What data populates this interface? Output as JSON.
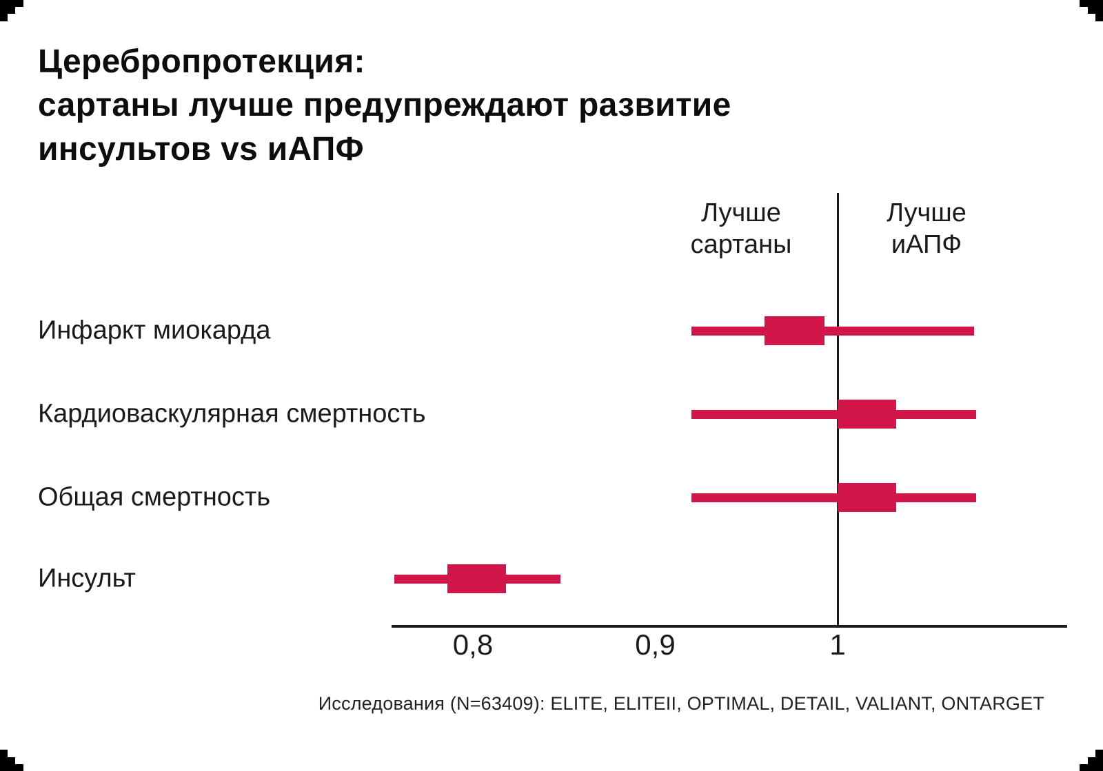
{
  "page": {
    "background": "#ffffff",
    "corner_color": "#000000",
    "text_color": "#111111"
  },
  "title": "Церебропротекция:\nсартаны лучше предупреждают развитие\nинсультов vs иАПФ",
  "footer": "Исследования (N=63409): ELITE, ELITEII, OPTIMAL, DETAIL, VALIANT, ONTARGET",
  "chart_data": {
    "type": "forest",
    "title": "Церебропротекция: сартаны лучше предупреждают развитие инсультов vs иАПФ",
    "direction_labels": {
      "left": "Лучше\nсартаны",
      "right": "Лучше\nиАПФ"
    },
    "reference_value": 1,
    "x_range": [
      0.755,
      1.126
    ],
    "x_ticks": [
      {
        "value": 0.8,
        "label": "0,8"
      },
      {
        "value": 0.9,
        "label": "0,9"
      },
      {
        "value": 1,
        "label": "1"
      }
    ],
    "grid": false,
    "marker_color": "#d2164a",
    "line_color": "#1a1a1a",
    "rows": [
      {
        "label": "Инфаркт миокарда",
        "point": 0.98,
        "ci": [
          0.92,
          1.075
        ],
        "box": [
          0.96,
          0.993
        ]
      },
      {
        "label": "Кардиоваскулярная смертность",
        "point": 1.02,
        "ci": [
          0.92,
          1.076
        ],
        "box": [
          1.0,
          1.032
        ]
      },
      {
        "label": "Общая смертность",
        "point": 1.02,
        "ci": [
          0.92,
          1.076
        ],
        "box": [
          1.0,
          1.032
        ]
      },
      {
        "label": "Инсульт",
        "point": 0.8,
        "ci": [
          0.757,
          0.848
        ],
        "box": [
          0.786,
          0.818
        ]
      }
    ]
  }
}
